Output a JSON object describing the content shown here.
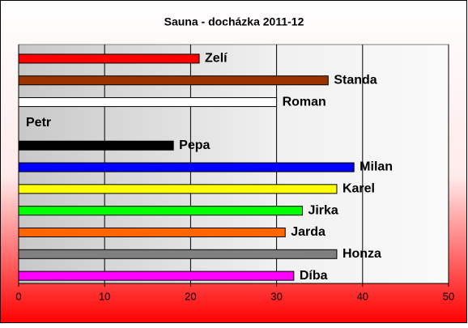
{
  "chart_data": {
    "type": "bar",
    "orientation": "horizontal",
    "title": "Sauna - docházka 2011-12",
    "categories": [
      "Zelí",
      "Standa",
      "Roman",
      "Petr",
      "Pepa",
      "Milan",
      "Karel",
      "Jirka",
      "Jarda",
      "Honza",
      "Díba"
    ],
    "values": [
      21,
      36,
      30,
      0,
      18,
      39,
      37,
      33,
      31,
      37,
      32
    ],
    "colors": [
      "#ff0000",
      "#993300",
      "#ffffff",
      null,
      "#000000",
      "#0000ff",
      "#ffff00",
      "#00ff00",
      "#ff6600",
      "#808080",
      "#ff00ff"
    ],
    "xlim": [
      0,
      50
    ],
    "xticks": [
      0,
      10,
      20,
      30,
      40,
      50
    ],
    "grid": true
  }
}
